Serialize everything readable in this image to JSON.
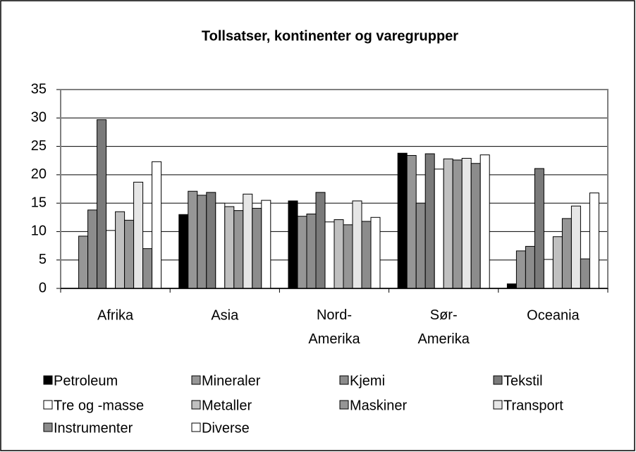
{
  "chart_data": {
    "type": "bar",
    "title": "Tollsatser, kontinenter og varegrupper",
    "categories": [
      "Afrika",
      "Asia",
      "Nord-Amerika",
      "Sør-Amerika",
      "Oceania"
    ],
    "ylim": [
      0,
      35
    ],
    "yticks": [
      0,
      5,
      10,
      15,
      20,
      25,
      30,
      35
    ],
    "grid": true,
    "series": [
      {
        "name": "Petroleum",
        "color": "#000000",
        "values": [
          0,
          13,
          15.4,
          23.8,
          0.8
        ]
      },
      {
        "name": "Mineraler",
        "color": "#969696",
        "values": [
          9.2,
          17.1,
          12.7,
          23.4,
          6.6
        ]
      },
      {
        "name": "Kjemi",
        "color": "#8c8c8c",
        "values": [
          13.8,
          16.4,
          13.1,
          15,
          7.4
        ]
      },
      {
        "name": "Tekstil",
        "color": "#7a7a7a",
        "values": [
          29.7,
          16.9,
          16.9,
          23.7,
          21.1
        ]
      },
      {
        "name": "Tre og -masse",
        "color": "#ffffff",
        "values": [
          10.2,
          15,
          11.7,
          21,
          5.1
        ]
      },
      {
        "name": "Metaller",
        "color": "#c0c0c0",
        "values": [
          13.5,
          14.4,
          12.1,
          22.8,
          9.1
        ]
      },
      {
        "name": "Maskiner",
        "color": "#969696",
        "values": [
          12,
          13.7,
          11.2,
          22.6,
          12.3
        ]
      },
      {
        "name": "Transport",
        "color": "#e6e6e6",
        "values": [
          18.7,
          16.6,
          15.4,
          22.9,
          14.5
        ]
      },
      {
        "name": "Instrumenter",
        "color": "#8c8c8c",
        "values": [
          7,
          14.1,
          11.8,
          22,
          5.2
        ]
      },
      {
        "name": "Diverse",
        "color": "#ffffff",
        "values": [
          22.3,
          15.5,
          12.5,
          23.5,
          16.8
        ]
      }
    ]
  }
}
